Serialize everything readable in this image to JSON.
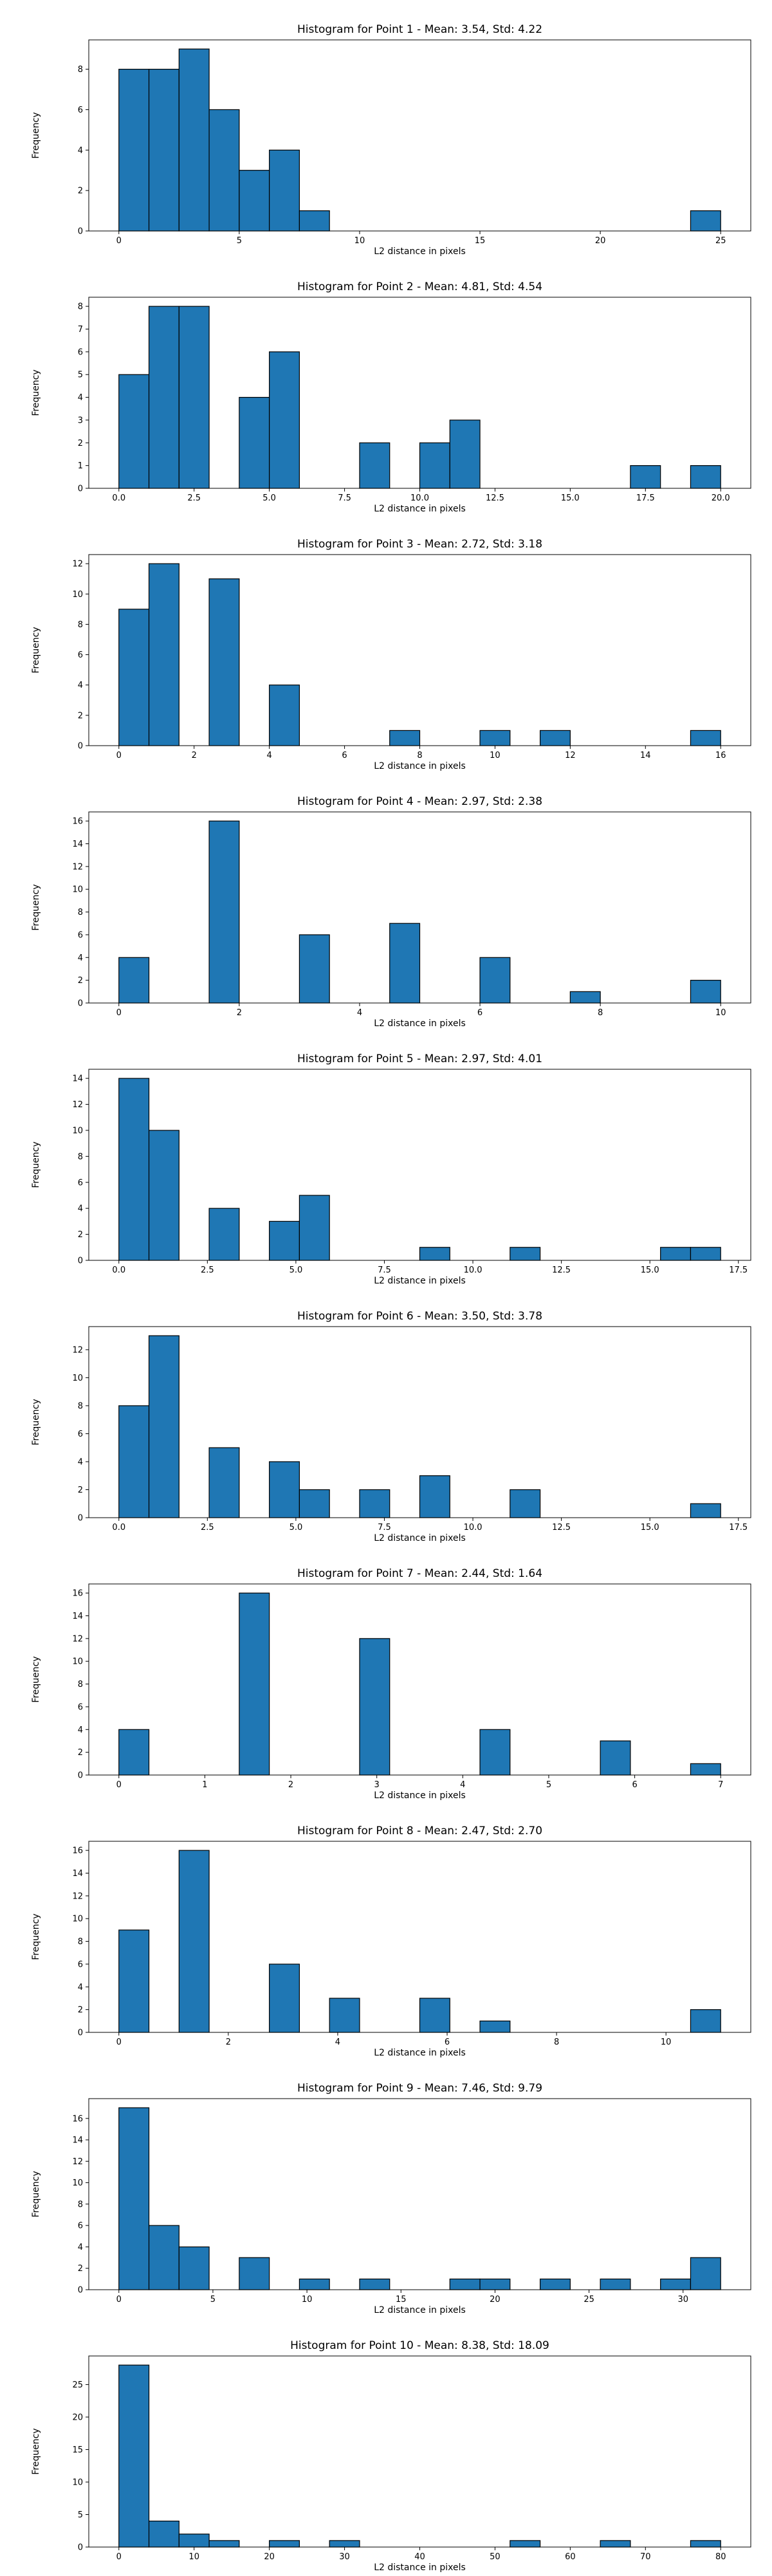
{
  "chart_data": [
    {
      "type": "bar",
      "title": "Histogram for Point 1 - Mean: 3.54, Std: 4.22",
      "xlabel": "L2 distance in pixels",
      "ylabel": "Frequency",
      "xlim": [
        -1.25,
        26.25
      ],
      "ylim": [
        0,
        9.45
      ],
      "xticks": [
        0,
        5,
        10,
        15,
        20,
        25
      ],
      "xtick_labels": [
        "0",
        "5",
        "10",
        "15",
        "20",
        "25"
      ],
      "yticks": [
        0,
        2,
        4,
        6,
        8
      ],
      "ytick_labels": [
        "0",
        "2",
        "4",
        "6",
        "8"
      ],
      "bin_edges": [
        0.0,
        1.25,
        2.5,
        3.75,
        5.0,
        6.25,
        7.5,
        8.75,
        10.0,
        11.25,
        12.5,
        13.75,
        15.0,
        16.25,
        17.5,
        18.75,
        20.0,
        21.25,
        22.5,
        23.75,
        25.0
      ],
      "values": [
        8,
        8,
        9,
        6,
        3,
        4,
        1,
        0,
        0,
        0,
        0,
        0,
        0,
        0,
        0,
        0,
        0,
        0,
        0,
        1
      ],
      "bar_color": "#1f77b4",
      "edge_color": "#000000",
      "grid": false
    },
    {
      "type": "bar",
      "title": "Histogram for Point 2 - Mean: 4.81, Std: 4.54",
      "xlabel": "L2 distance in pixels",
      "ylabel": "Frequency",
      "xlim": [
        -1.0,
        21.0
      ],
      "ylim": [
        0,
        8.4
      ],
      "xticks": [
        0,
        2.5,
        5,
        7.5,
        10,
        12.5,
        15,
        17.5,
        20
      ],
      "xtick_labels": [
        "0.0",
        "2.5",
        "5.0",
        "7.5",
        "10.0",
        "12.5",
        "15.0",
        "17.5",
        "20.0"
      ],
      "yticks": [
        0,
        1,
        2,
        3,
        4,
        5,
        6,
        7,
        8
      ],
      "ytick_labels": [
        "0",
        "1",
        "2",
        "3",
        "4",
        "5",
        "6",
        "7",
        "8"
      ],
      "bin_edges": [
        0.0,
        1.0,
        2.0,
        3.0,
        4.0,
        5.0,
        6.0,
        7.0,
        8.0,
        9.0,
        10.0,
        11.0,
        12.0,
        13.0,
        14.0,
        15.0,
        16.0,
        17.0,
        18.0,
        19.0,
        20.0
      ],
      "values": [
        5,
        8,
        8,
        0,
        4,
        6,
        0,
        0,
        2,
        0,
        2,
        3,
        0,
        0,
        0,
        0,
        0,
        1,
        0,
        1
      ],
      "bar_color": "#1f77b4",
      "edge_color": "#000000",
      "grid": false
    },
    {
      "type": "bar",
      "title": "Histogram for Point 3 - Mean: 2.72, Std: 3.18",
      "xlabel": "L2 distance in pixels",
      "ylabel": "Frequency",
      "xlim": [
        -0.8,
        16.8
      ],
      "ylim": [
        0,
        12.6
      ],
      "xticks": [
        0,
        2,
        4,
        6,
        8,
        10,
        12,
        14,
        16
      ],
      "xtick_labels": [
        "0",
        "2",
        "4",
        "6",
        "8",
        "10",
        "12",
        "14",
        "16"
      ],
      "yticks": [
        0,
        2,
        4,
        6,
        8,
        10,
        12
      ],
      "ytick_labels": [
        "0",
        "2",
        "4",
        "6",
        "8",
        "10",
        "12"
      ],
      "bin_edges": [
        0.0,
        0.8,
        1.6,
        2.4,
        3.2,
        4.0,
        4.8,
        5.6,
        6.4,
        7.2,
        8.0,
        8.8,
        9.6,
        10.4,
        11.2,
        12.0,
        12.8,
        13.6,
        14.4,
        15.2,
        16.0
      ],
      "values": [
        9,
        12,
        0,
        11,
        0,
        4,
        0,
        0,
        0,
        1,
        0,
        0,
        1,
        0,
        1,
        0,
        0,
        0,
        0,
        1
      ],
      "bar_color": "#1f77b4",
      "edge_color": "#000000",
      "grid": false
    },
    {
      "type": "bar",
      "title": "Histogram for Point 4 - Mean: 2.97, Std: 2.38",
      "xlabel": "L2 distance in pixels",
      "ylabel": "Frequency",
      "xlim": [
        -0.5,
        10.5
      ],
      "ylim": [
        0,
        16.8
      ],
      "xticks": [
        0,
        2,
        4,
        6,
        8,
        10
      ],
      "xtick_labels": [
        "0",
        "2",
        "4",
        "6",
        "8",
        "10"
      ],
      "yticks": [
        0,
        2,
        4,
        6,
        8,
        10,
        12,
        14,
        16
      ],
      "ytick_labels": [
        "0",
        "2",
        "4",
        "6",
        "8",
        "10",
        "12",
        "14",
        "16"
      ],
      "bin_edges": [
        0.0,
        0.5,
        1.0,
        1.5,
        2.0,
        2.5,
        3.0,
        3.5,
        4.0,
        4.5,
        5.0,
        5.5,
        6.0,
        6.5,
        7.0,
        7.5,
        8.0,
        8.5,
        9.0,
        9.5,
        10.0
      ],
      "values": [
        4,
        0,
        0,
        16,
        0,
        0,
        6,
        0,
        0,
        7,
        0,
        0,
        4,
        0,
        0,
        1,
        0,
        0,
        0,
        2
      ],
      "bar_color": "#1f77b4",
      "edge_color": "#000000",
      "grid": false
    },
    {
      "type": "bar",
      "title": "Histogram for Point 5 - Mean: 2.97, Std: 4.01",
      "xlabel": "L2 distance in pixels",
      "ylabel": "Frequency",
      "xlim": [
        -0.85,
        17.85
      ],
      "ylim": [
        0,
        14.7
      ],
      "xticks": [
        0,
        2.5,
        5,
        7.5,
        10,
        12.5,
        15,
        17.5
      ],
      "xtick_labels": [
        "0.0",
        "2.5",
        "5.0",
        "7.5",
        "10.0",
        "12.5",
        "15.0",
        "17.5"
      ],
      "yticks": [
        0,
        2,
        4,
        6,
        8,
        10,
        12,
        14
      ],
      "ytick_labels": [
        "0",
        "2",
        "4",
        "6",
        "8",
        "10",
        "12",
        "14"
      ],
      "bin_edges": [
        0.0,
        0.85,
        1.7,
        2.55,
        3.4,
        4.25,
        5.1,
        5.95,
        6.8,
        7.65,
        8.5,
        9.35,
        10.2,
        11.05,
        11.9,
        12.75,
        13.6,
        14.45,
        15.3,
        16.15,
        17.0
      ],
      "values": [
        14,
        10,
        0,
        4,
        0,
        3,
        5,
        0,
        0,
        0,
        1,
        0,
        0,
        1,
        0,
        0,
        0,
        0,
        1,
        1
      ],
      "bar_color": "#1f77b4",
      "edge_color": "#000000",
      "grid": false
    },
    {
      "type": "bar",
      "title": "Histogram for Point 6 - Mean: 3.50, Std: 3.78",
      "xlabel": "L2 distance in pixels",
      "ylabel": "Frequency",
      "xlim": [
        -0.85,
        17.85
      ],
      "ylim": [
        0,
        13.65
      ],
      "xticks": [
        0,
        2.5,
        5,
        7.5,
        10,
        12.5,
        15,
        17.5
      ],
      "xtick_labels": [
        "0.0",
        "2.5",
        "5.0",
        "7.5",
        "10.0",
        "12.5",
        "15.0",
        "17.5"
      ],
      "yticks": [
        0,
        2,
        4,
        6,
        8,
        10,
        12
      ],
      "ytick_labels": [
        "0",
        "2",
        "4",
        "6",
        "8",
        "10",
        "12"
      ],
      "bin_edges": [
        0.0,
        0.85,
        1.7,
        2.55,
        3.4,
        4.25,
        5.1,
        5.95,
        6.8,
        7.65,
        8.5,
        9.35,
        10.2,
        11.05,
        11.9,
        12.75,
        13.6,
        14.45,
        15.3,
        16.15,
        17.0
      ],
      "values": [
        8,
        13,
        0,
        5,
        0,
        4,
        2,
        0,
        2,
        0,
        3,
        0,
        0,
        2,
        0,
        0,
        0,
        0,
        0,
        1
      ],
      "bar_color": "#1f77b4",
      "edge_color": "#000000",
      "grid": false
    },
    {
      "type": "bar",
      "title": "Histogram for Point 7 - Mean: 2.44, Std: 1.64",
      "xlabel": "L2 distance in pixels",
      "ylabel": "Frequency",
      "xlim": [
        -0.35,
        7.35
      ],
      "ylim": [
        0,
        16.8
      ],
      "xticks": [
        0,
        1,
        2,
        3,
        4,
        5,
        6,
        7
      ],
      "xtick_labels": [
        "0",
        "1",
        "2",
        "3",
        "4",
        "5",
        "6",
        "7"
      ],
      "yticks": [
        0,
        2,
        4,
        6,
        8,
        10,
        12,
        14,
        16
      ],
      "ytick_labels": [
        "0",
        "2",
        "4",
        "6",
        "8",
        "10",
        "12",
        "14",
        "16"
      ],
      "bin_edges": [
        0.0,
        0.35,
        0.7,
        1.05,
        1.4,
        1.75,
        2.1,
        2.45,
        2.8,
        3.15,
        3.5,
        3.85,
        4.2,
        4.55,
        4.9,
        5.25,
        5.6,
        5.95,
        6.3,
        6.65,
        7.0
      ],
      "values": [
        4,
        0,
        0,
        0,
        16,
        0,
        0,
        0,
        12,
        0,
        0,
        0,
        4,
        0,
        0,
        0,
        3,
        0,
        0,
        1
      ],
      "bar_color": "#1f77b4",
      "edge_color": "#000000",
      "grid": false
    },
    {
      "type": "bar",
      "title": "Histogram for Point 8 - Mean: 2.47, Std: 2.70",
      "xlabel": "L2 distance in pixels",
      "ylabel": "Frequency",
      "xlim": [
        -0.55,
        11.55
      ],
      "ylim": [
        0,
        16.8
      ],
      "xticks": [
        0,
        2,
        4,
        6,
        8,
        10
      ],
      "xtick_labels": [
        "0",
        "2",
        "4",
        "6",
        "8",
        "10"
      ],
      "yticks": [
        0,
        2,
        4,
        6,
        8,
        10,
        12,
        14,
        16
      ],
      "ytick_labels": [
        "0",
        "2",
        "4",
        "6",
        "8",
        "10",
        "12",
        "14",
        "16"
      ],
      "bin_edges": [
        0.0,
        0.55,
        1.1,
        1.65,
        2.2,
        2.75,
        3.3,
        3.85,
        4.4,
        4.95,
        5.5,
        6.05,
        6.6,
        7.15,
        7.7,
        8.25,
        8.8,
        9.35,
        9.9,
        10.45,
        11.0
      ],
      "values": [
        9,
        0,
        16,
        0,
        0,
        6,
        0,
        3,
        0,
        0,
        3,
        0,
        1,
        0,
        0,
        0,
        0,
        0,
        0,
        2
      ],
      "bar_color": "#1f77b4",
      "edge_color": "#000000",
      "grid": false
    },
    {
      "type": "bar",
      "title": "Histogram for Point 9 - Mean: 7.46, Std: 9.79",
      "xlabel": "L2 distance in pixels",
      "ylabel": "Frequency",
      "xlim": [
        -1.6,
        33.6
      ],
      "ylim": [
        0,
        17.85
      ],
      "xticks": [
        0,
        5,
        10,
        15,
        20,
        25,
        30
      ],
      "xtick_labels": [
        "0",
        "5",
        "10",
        "15",
        "20",
        "25",
        "30"
      ],
      "yticks": [
        0,
        2,
        4,
        6,
        8,
        10,
        12,
        14,
        16
      ],
      "ytick_labels": [
        "0",
        "2",
        "4",
        "6",
        "8",
        "10",
        "12",
        "14",
        "16"
      ],
      "bin_edges": [
        0.0,
        1.6,
        3.2,
        4.8,
        6.4,
        8.0,
        9.6,
        11.2,
        12.8,
        14.4,
        16.0,
        17.6,
        19.2,
        20.8,
        22.4,
        24.0,
        25.6,
        27.2,
        28.8,
        30.4,
        32.0
      ],
      "values": [
        17,
        6,
        4,
        0,
        3,
        0,
        1,
        0,
        1,
        0,
        0,
        1,
        1,
        0,
        1,
        0,
        1,
        0,
        1,
        3
      ],
      "bar_color": "#1f77b4",
      "edge_color": "#000000",
      "grid": false
    },
    {
      "type": "bar",
      "title": "Histogram for Point 10 - Mean: 8.38, Std: 18.09",
      "xlabel": "L2 distance in pixels",
      "ylabel": "Frequency",
      "xlim": [
        -4.0,
        84.0
      ],
      "ylim": [
        0,
        29.4
      ],
      "xticks": [
        0,
        10,
        20,
        30,
        40,
        50,
        60,
        70,
        80
      ],
      "xtick_labels": [
        "0",
        "10",
        "20",
        "30",
        "40",
        "50",
        "60",
        "70",
        "80"
      ],
      "yticks": [
        0,
        5,
        10,
        15,
        20,
        25
      ],
      "ytick_labels": [
        "0",
        "5",
        "10",
        "15",
        "20",
        "25"
      ],
      "bin_edges": [
        0.0,
        4.0,
        8.0,
        12.0,
        16.0,
        20.0,
        24.0,
        28.0,
        32.0,
        36.0,
        40.0,
        44.0,
        48.0,
        52.0,
        56.0,
        60.0,
        64.0,
        68.0,
        72.0,
        76.0,
        80.0
      ],
      "values": [
        28,
        4,
        2,
        1,
        0,
        1,
        0,
        1,
        0,
        0,
        0,
        0,
        0,
        1,
        0,
        0,
        1,
        0,
        0,
        1
      ],
      "bar_color": "#1f77b4",
      "edge_color": "#000000",
      "grid": false
    }
  ]
}
